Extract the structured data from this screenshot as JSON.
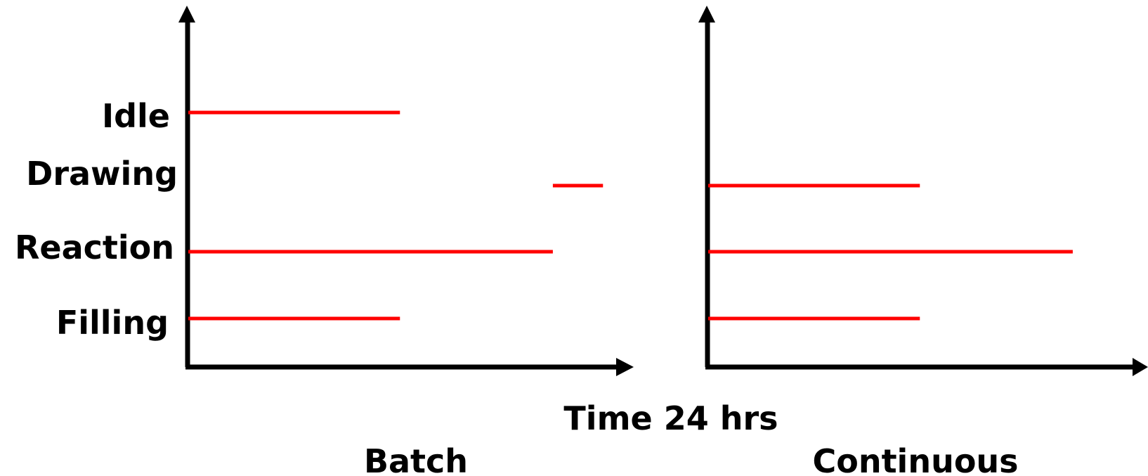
{
  "row_labels": [
    "Idle",
    "Drawing",
    "Reaction",
    "Filling"
  ],
  "x_axis_label": "Time 24 hrs",
  "colors": {
    "axis": "#000000",
    "segment": "#ff0000"
  },
  "charts": [
    {
      "caption": "Batch",
      "segments": [
        {
          "row": "Idle",
          "start": 0,
          "end": 0.515
        },
        {
          "row": "Drawing",
          "start": 0.887,
          "end": 1.009
        },
        {
          "row": "Reaction",
          "start": 0,
          "end": 0.887
        },
        {
          "row": "Filling",
          "start": 0,
          "end": 0.515
        }
      ]
    },
    {
      "caption": "Continuous",
      "segments": [
        {
          "row": "Drawing",
          "start": 0,
          "end": 0.515
        },
        {
          "row": "Reaction",
          "start": 0,
          "end": 0.887
        },
        {
          "row": "Filling",
          "start": 0,
          "end": 0.515
        }
      ]
    }
  ]
}
